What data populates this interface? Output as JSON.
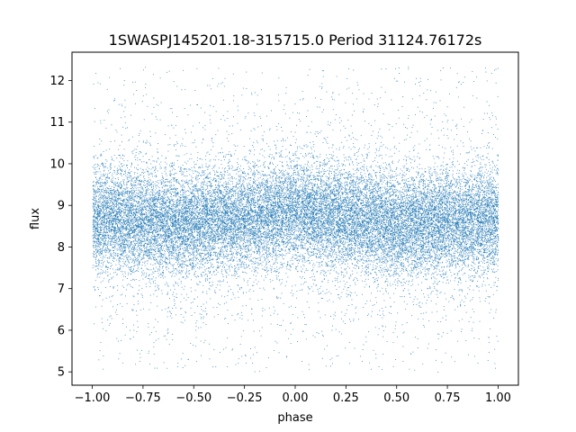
{
  "chart_data": {
    "type": "scatter",
    "title": "1SWASPJ145201.18-315715.0 Period 31124.76172s",
    "xlabel": "phase",
    "ylabel": "flux",
    "xlim": [
      -1.1,
      1.1
    ],
    "ylim": [
      4.68,
      12.68
    ],
    "xticks": [
      -1.0,
      -0.75,
      -0.5,
      -0.25,
      0.0,
      0.25,
      0.5,
      0.75,
      1.0
    ],
    "xtick_labels": [
      "−1.00",
      "−0.75",
      "−0.50",
      "−0.25",
      "0.00",
      "0.25",
      "0.50",
      "0.75",
      "1.00"
    ],
    "yticks": [
      5,
      6,
      7,
      8,
      9,
      10,
      11,
      12
    ],
    "ytick_labels": [
      "5",
      "6",
      "7",
      "8",
      "9",
      "10",
      "11",
      "12"
    ],
    "grid": false,
    "legend": "none",
    "marker_color": "#1f77b4",
    "series": [
      {
        "x_range": [
          -1.0,
          1.0
        ],
        "y_range": [
          5.0,
          12.35
        ],
        "center_y": [
          [
            -1.0,
            8.7
          ],
          [
            -0.5,
            8.55
          ],
          [
            0.0,
            8.85
          ],
          [
            0.5,
            8.55
          ],
          [
            1.0,
            8.7
          ]
        ],
        "dense_band": [
          7.6,
          9.8
        ],
        "values": [
          [
            -0.98,
            8.7
          ],
          [
            -0.9,
            8.5
          ],
          [
            -0.8,
            8.9
          ],
          [
            -0.7,
            8.4
          ],
          [
            -0.6,
            8.6
          ],
          [
            -0.5,
            8.5
          ],
          [
            -0.4,
            8.8
          ],
          [
            -0.3,
            8.6
          ],
          [
            -0.2,
            8.9
          ],
          [
            -0.1,
            8.8
          ],
          [
            0.0,
            8.85
          ],
          [
            0.1,
            8.7
          ],
          [
            0.2,
            8.6
          ],
          [
            0.3,
            8.5
          ],
          [
            0.4,
            8.6
          ],
          [
            0.5,
            8.5
          ],
          [
            0.6,
            8.7
          ],
          [
            0.7,
            8.8
          ],
          [
            0.8,
            8.6
          ],
          [
            0.9,
            8.7
          ],
          [
            0.98,
            8.6
          ]
        ]
      }
    ]
  }
}
